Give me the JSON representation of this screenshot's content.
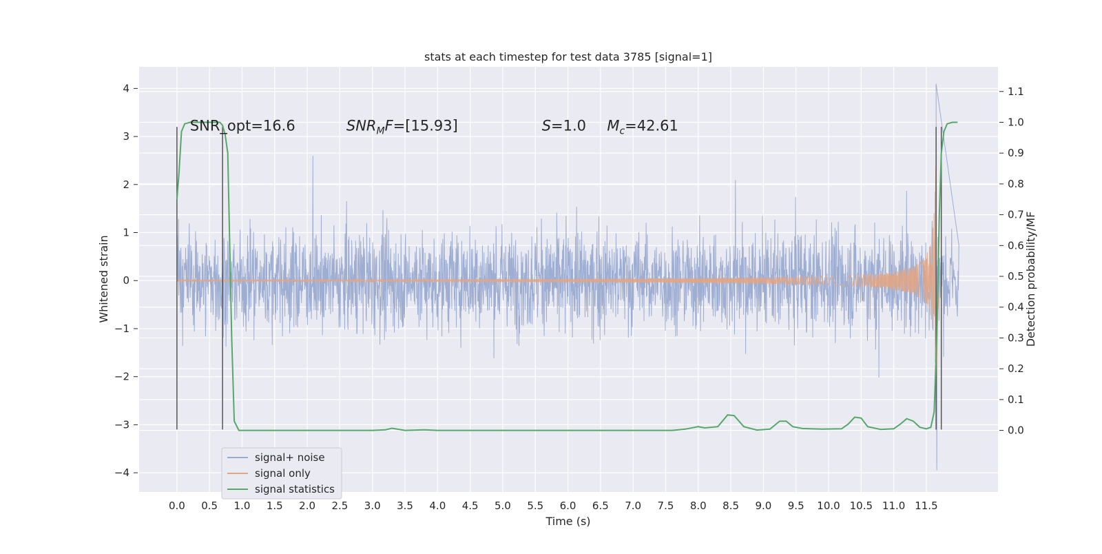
{
  "chart_data": {
    "type": "line",
    "title": "stats at each timestep for test data 3785 [signal=1]",
    "xlabel": "Time (s)",
    "ylabel": "Whitened strain",
    "y2label": "Detection probability/MF",
    "xlim": [
      -0.58,
      12.6
    ],
    "ylim": [
      -4.4,
      4.45
    ],
    "y2lim": [
      -0.2,
      1.18
    ],
    "xticks": [
      0.0,
      0.5,
      1.0,
      1.5,
      2.0,
      2.5,
      3.0,
      3.5,
      4.0,
      4.5,
      5.0,
      5.5,
      6.0,
      6.5,
      7.0,
      7.5,
      8.0,
      8.5,
      9.0,
      9.5,
      10.0,
      10.5,
      11.0,
      11.5
    ],
    "xtick_labels": [
      "0.0",
      "0.5",
      "1.0",
      "1.5",
      "2.0",
      "2.5",
      "3.0",
      "3.5",
      "4.0",
      "4.5",
      "5.0",
      "5.5",
      "6.0",
      "6.5",
      "7.0",
      "7.5",
      "8.0",
      "8.5",
      "9.0",
      "9.5",
      "10.0",
      "10.5",
      "11.0",
      "11.5"
    ],
    "yticks": [
      -4,
      -3,
      -2,
      -1,
      0,
      1,
      2,
      3,
      4
    ],
    "ytick_labels": [
      "−4",
      "−3",
      "−2",
      "−1",
      "0",
      "1",
      "2",
      "3",
      "4"
    ],
    "y2ticks": [
      0.0,
      0.1,
      0.2,
      0.3,
      0.4,
      0.5,
      0.6,
      0.7,
      0.8,
      0.9,
      1.0,
      1.1
    ],
    "y2tick_labels": [
      "0.0",
      "0.1",
      "0.2",
      "0.3",
      "0.4",
      "0.5",
      "0.6",
      "0.7",
      "0.8",
      "0.9",
      "1.0",
      "1.1"
    ],
    "grid": true,
    "legend_position": "lower-left",
    "colors": {
      "background": "#eaeaf2",
      "grid": "#ffffff",
      "noise": "#9aaad0",
      "signal": "#e0a686",
      "stats": "#55a868",
      "marker": "#555555"
    },
    "series": [
      {
        "name": "signal+ noise",
        "axis": "left",
        "description_values": "dense noisy band spanning the full time range",
        "x_range": [
          0.0,
          12.0
        ],
        "typical_envelope": [
          -1.5,
          1.6
        ],
        "peak_max": 4.1,
        "peak_min": -3.95,
        "peak_time": 11.65
      },
      {
        "name": "signal only",
        "axis": "left",
        "x_range": [
          0.0,
          11.7
        ],
        "chirp_merger_time": 11.65,
        "chirp_peak_amplitude": 3.3
      },
      {
        "name": "signal statistics",
        "axis": "right",
        "x": [
          0.0,
          0.03,
          0.07,
          0.12,
          0.2,
          0.3,
          0.4,
          0.5,
          0.6,
          0.66,
          0.7,
          0.74,
          0.78,
          0.8,
          0.84,
          0.88,
          0.95,
          1.2,
          2.0,
          3.0,
          3.2,
          3.3,
          3.5,
          3.8,
          4.0,
          5.0,
          6.0,
          7.0,
          7.6,
          7.8,
          8.0,
          8.1,
          8.3,
          8.45,
          8.55,
          8.7,
          8.9,
          9.1,
          9.25,
          9.35,
          9.45,
          9.6,
          9.9,
          10.2,
          10.3,
          10.4,
          10.5,
          10.6,
          10.8,
          11.0,
          11.1,
          11.2,
          11.3,
          11.4,
          11.5,
          11.57,
          11.62,
          11.66,
          11.7,
          11.73,
          11.77,
          11.82,
          11.9,
          11.98
        ],
        "y": [
          0.75,
          0.83,
          0.97,
          0.995,
          1.0,
          1.0,
          1.0,
          1.0,
          1.0,
          1.0,
          0.99,
          0.96,
          0.9,
          0.7,
          0.3,
          0.03,
          0.0,
          0.0,
          0.0,
          0.0,
          0.002,
          0.007,
          0.0,
          0.002,
          0.0,
          0.0,
          0.0,
          0.0,
          0.0,
          0.004,
          0.012,
          0.008,
          0.012,
          0.05,
          0.048,
          0.012,
          0.001,
          0.004,
          0.03,
          0.03,
          0.012,
          0.006,
          0.004,
          0.005,
          0.02,
          0.043,
          0.04,
          0.012,
          0.003,
          0.005,
          0.02,
          0.038,
          0.03,
          0.01,
          0.005,
          0.01,
          0.06,
          0.3,
          0.7,
          0.9,
          0.97,
          0.995,
          1.0,
          1.0
        ]
      }
    ],
    "vertical_markers": [
      {
        "x": 0.0,
        "ymin": -3.1,
        "ymax": 3.2
      },
      {
        "x": 0.7,
        "ymin": -3.1,
        "ymax": 3.2
      },
      {
        "x": 11.65,
        "ymin": -3.1,
        "ymax": 3.2
      },
      {
        "x": 11.73,
        "ymin": -3.1,
        "ymax": 3.2
      }
    ],
    "annotations": [
      {
        "key": "snr_opt",
        "text": "SNR_opt=16.6",
        "x": 0.2,
        "y": 3.12
      },
      {
        "key": "snr_mf",
        "text": "SNR_MF=[15.93]",
        "x": 2.6,
        "y": 3.12
      },
      {
        "key": "s_value",
        "text": "S=1.0",
        "x": 5.6,
        "y": 3.12
      },
      {
        "key": "mc_value",
        "text": "M_c=42.61",
        "x": 6.6,
        "y": 3.12
      }
    ]
  }
}
